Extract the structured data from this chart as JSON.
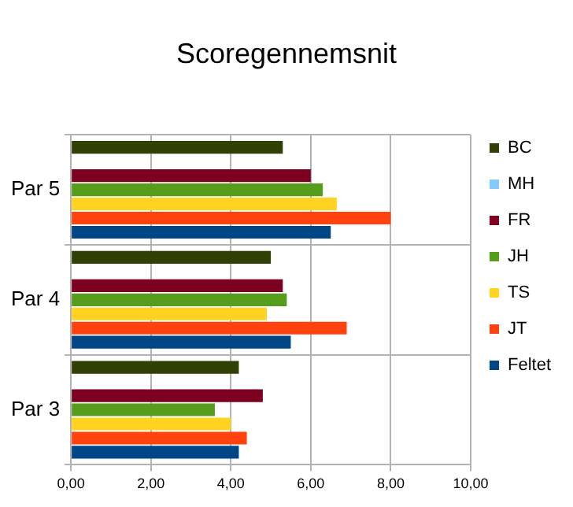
{
  "chart_data": {
    "type": "bar",
    "orientation": "horizontal",
    "title": "Scoregennemsnit",
    "categories": [
      "Par 5",
      "Par 4",
      "Par 3"
    ],
    "series": [
      {
        "name": "BC",
        "color": "#314004",
        "values": [
          5.3,
          5.0,
          4.2
        ]
      },
      {
        "name": "MH",
        "color": "#83caff",
        "values": [
          null,
          null,
          null
        ]
      },
      {
        "name": "FR",
        "color": "#7e0021",
        "values": [
          6.0,
          5.3,
          4.8
        ]
      },
      {
        "name": "JH",
        "color": "#579d1c",
        "values": [
          6.3,
          5.4,
          3.6
        ]
      },
      {
        "name": "TS",
        "color": "#ffd320",
        "values": [
          6.65,
          4.9,
          4.0
        ]
      },
      {
        "name": "JT",
        "color": "#ff420e",
        "values": [
          8.0,
          6.9,
          4.4
        ]
      },
      {
        "name": "Feltet",
        "color": "#004586",
        "values": [
          6.5,
          5.5,
          4.2
        ]
      }
    ],
    "xlim": [
      0,
      10
    ],
    "xticks": [
      {
        "value": 0,
        "label": "0,00"
      },
      {
        "value": 2,
        "label": "2,00"
      },
      {
        "value": 4,
        "label": "4,00"
      },
      {
        "value": 6,
        "label": "6,00"
      },
      {
        "value": 8,
        "label": "8,00"
      },
      {
        "value": 10,
        "label": "10,00"
      }
    ],
    "grid": true,
    "legend": "right"
  }
}
